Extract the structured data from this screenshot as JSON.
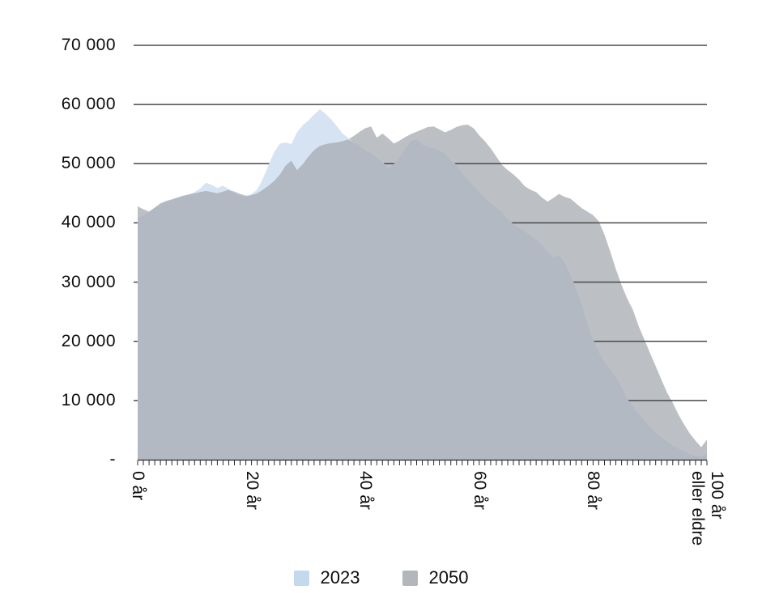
{
  "chart_data": {
    "type": "area",
    "title": "",
    "xlabel": "",
    "ylabel": "",
    "xlim": [
      0,
      100
    ],
    "ylim": [
      0,
      70000
    ],
    "grid": "horizontal",
    "legend_position": "bottom-center",
    "x_minor_tick_interval": 1,
    "x_ticks": [
      {
        "age": 0,
        "label": "0 år"
      },
      {
        "age": 20,
        "label": "20 år"
      },
      {
        "age": 40,
        "label": "40 år"
      },
      {
        "age": 60,
        "label": "60 år"
      },
      {
        "age": 80,
        "label": "80 år"
      },
      {
        "age": 100,
        "label": "100 år\neller eldre"
      }
    ],
    "y_ticks": [
      {
        "value": 70000,
        "label": "70 000"
      },
      {
        "value": 60000,
        "label": "60 000"
      },
      {
        "value": 50000,
        "label": "50 000"
      },
      {
        "value": 40000,
        "label": "40 000"
      },
      {
        "value": 30000,
        "label": "30 000"
      },
      {
        "value": 20000,
        "label": "20 000"
      },
      {
        "value": 10000,
        "label": "10 000"
      },
      {
        "value": 0,
        "label": "-"
      }
    ],
    "colors": {
      "series_2023_fill": "#d5e3f3",
      "series_2023_legend": "#c5d9ee",
      "series_2050_fill": "#bcbfc3",
      "series_2050_legend": "#b3b6ba",
      "overlap_fill": "#b2b9c3",
      "gridline": "#4a4a4a",
      "axis": "#2b2b2b",
      "text": "#0d0d0d"
    },
    "ages_start": 0,
    "ages_end": 100,
    "series": [
      {
        "name": "2023",
        "values": [
          40800,
          41300,
          41900,
          42500,
          43100,
          43600,
          43900,
          44200,
          44500,
          44800,
          45200,
          45800,
          46800,
          46400,
          45900,
          46300,
          45700,
          45100,
          44600,
          44500,
          44900,
          45600,
          47500,
          49800,
          52000,
          53400,
          53600,
          53300,
          55300,
          56500,
          57300,
          58300,
          59200,
          58400,
          57500,
          56300,
          55100,
          54300,
          53600,
          53100,
          52300,
          51800,
          51100,
          50300,
          49300,
          49900,
          51100,
          52600,
          53900,
          54200,
          53300,
          52800,
          52600,
          52300,
          51700,
          50600,
          49800,
          48400,
          47400,
          46300,
          45300,
          44300,
          43400,
          42600,
          41900,
          40600,
          39800,
          39200,
          38600,
          37900,
          37200,
          36300,
          35200,
          34100,
          34600,
          33300,
          31400,
          28900,
          26300,
          23100,
          20300,
          18200,
          16600,
          15300,
          14000,
          12400,
          10300,
          9000,
          7800,
          6700,
          5600,
          4600,
          3800,
          3100,
          2400,
          1900,
          1400,
          1000,
          700,
          500,
          1000
        ]
      },
      {
        "name": "2050",
        "values": [
          42800,
          42300,
          41900,
          42600,
          43300,
          43700,
          44000,
          44300,
          44600,
          44800,
          45000,
          45200,
          45400,
          45200,
          45000,
          45300,
          45600,
          45300,
          44900,
          44600,
          44700,
          45000,
          45600,
          46300,
          47100,
          48200,
          49700,
          50500,
          48900,
          49900,
          51200,
          52300,
          53000,
          53300,
          53500,
          53600,
          53800,
          54100,
          54700,
          55400,
          56000,
          56300,
          54400,
          55100,
          54300,
          53400,
          53900,
          54500,
          55000,
          55400,
          55800,
          56200,
          56300,
          55800,
          55300,
          55700,
          56200,
          56500,
          56600,
          56000,
          54800,
          53800,
          52600,
          51200,
          49800,
          48900,
          48200,
          47300,
          46200,
          45600,
          45200,
          44300,
          43600,
          44200,
          44900,
          44400,
          44100,
          43300,
          42500,
          41900,
          41300,
          40300,
          38000,
          35200,
          32200,
          29500,
          27200,
          25300,
          22600,
          20300,
          18000,
          15800,
          13500,
          11300,
          9600,
          7600,
          5900,
          4400,
          3200,
          2100,
          3400
        ]
      }
    ]
  }
}
